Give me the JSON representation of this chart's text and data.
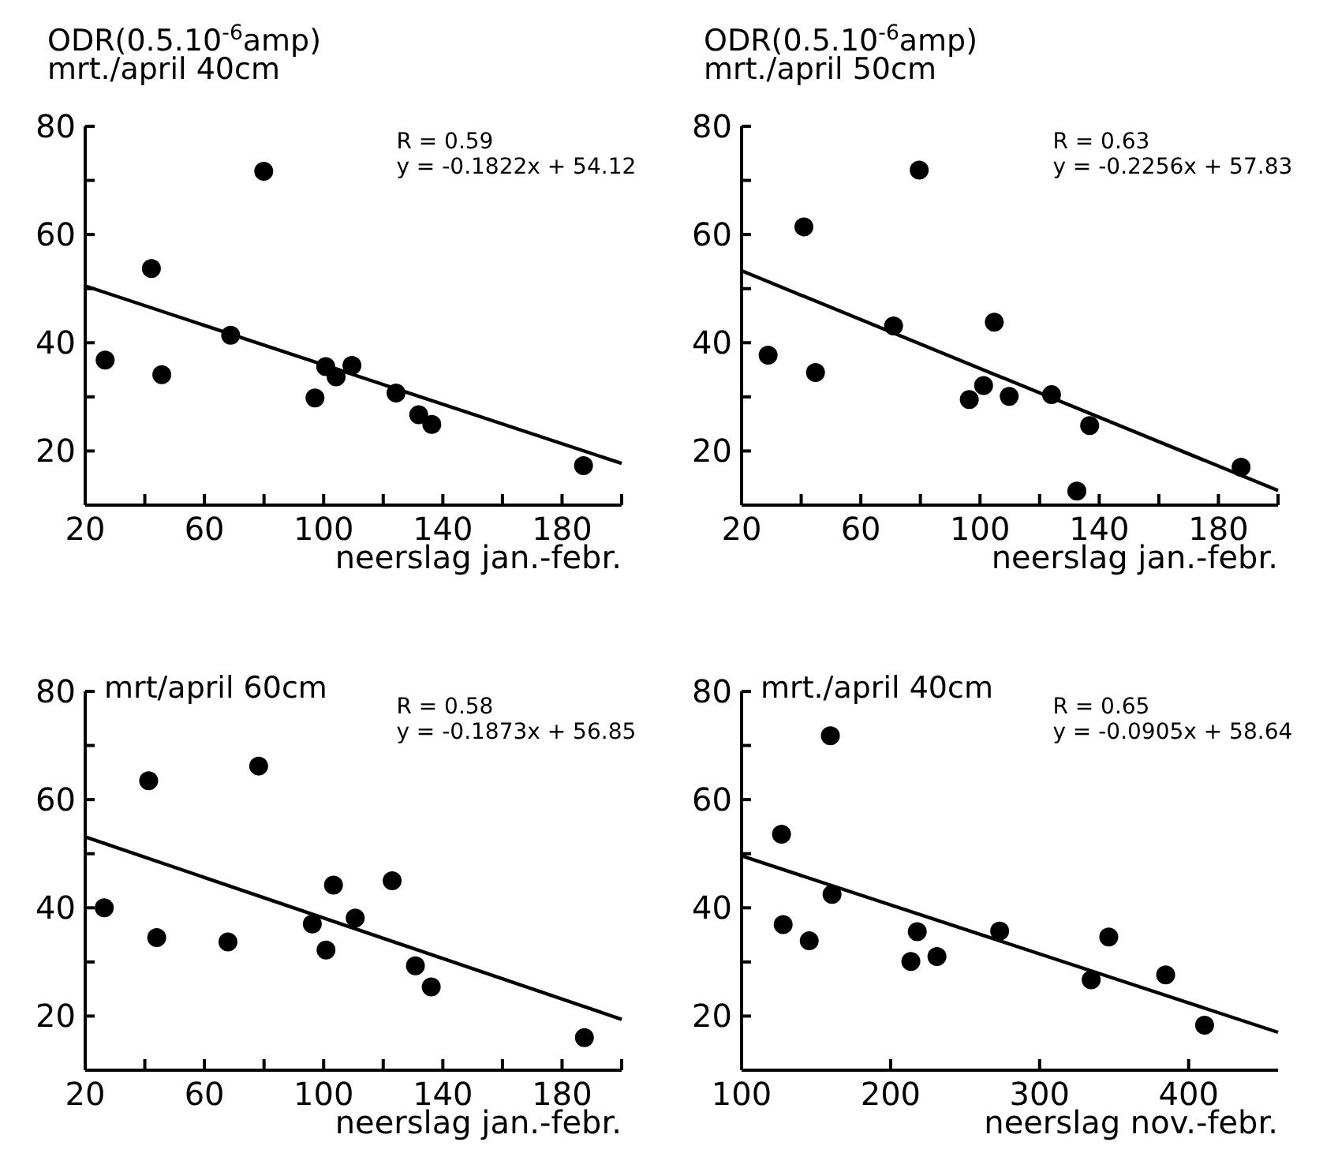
{
  "chart_data": [
    {
      "type": "scatter",
      "title": "ODR(0.5.10$^{-6}$amp)",
      "subtitle": "mrt./april 40cm",
      "xlabel": "neerslag jan.-febr.",
      "annotations": [
        "R = 0.59",
        "y = -0.1822x + 54.12"
      ],
      "xlim": [
        20,
        200
      ],
      "ylim": [
        10,
        80
      ],
      "xticks": [
        20,
        {
          "value": 40,
          "label": null
        },
        60,
        {
          "value": 80,
          "label": null
        },
        100,
        {
          "value": 120,
          "label": null
        },
        140,
        {
          "value": 160,
          "label": null
        },
        180,
        {
          "value": 200,
          "label": null
        }
      ],
      "yticks": [
        {
          "value": 10,
          "label": null
        },
        20,
        {
          "value": 30,
          "label": null
        },
        40,
        {
          "value": 50,
          "label": null
        },
        60,
        {
          "value": 70,
          "label": null
        },
        80
      ],
      "series": [
        {
          "marker": "circle",
          "color": "#000000",
          "x": [
            26.7,
            42.2,
            45.7,
            79.9,
            68.8,
            97.1,
            100.7,
            104.2,
            109.5,
            124.3,
            131.9,
            136.3,
            187.2
          ],
          "values": [
            36.8,
            53.7,
            34.1,
            71.7,
            41.4,
            29.8,
            35.6,
            33.7,
            35.8,
            30.7,
            26.7,
            24.9,
            17.3
          ]
        },
        {
          "type": "line",
          "marker": "none",
          "color": "#000000",
          "x": [
            20,
            200
          ],
          "values": [
            50.5,
            17.7
          ]
        }
      ]
    },
    {
      "type": "scatter",
      "title": "ODR(0.5.10$^{-6}$amp)",
      "subtitle": "mrt./april 50cm",
      "xlabel": "neerslag jan.-febr.",
      "annotations": [
        "R = 0.63",
        "y = -0.2256x + 57.83"
      ],
      "xlim": [
        20,
        200
      ],
      "ylim": [
        10,
        80
      ],
      "xticks": [
        20,
        {
          "value": 40,
          "label": null
        },
        60,
        {
          "value": 80,
          "label": null
        },
        100,
        {
          "value": 120,
          "label": null
        },
        140,
        {
          "value": 160,
          "label": null
        },
        180,
        {
          "value": 200,
          "label": null
        }
      ],
      "yticks": [
        {
          "value": 10,
          "label": null
        },
        20,
        {
          "value": 30,
          "label": null
        },
        40,
        {
          "value": 50,
          "label": null
        },
        60,
        {
          "value": 70,
          "label": null
        },
        80
      ],
      "series": [
        {
          "marker": "circle",
          "color": "#000000",
          "x": [
            28.9,
            40.9,
            44.8,
            79.6,
            71.0,
            96.4,
            101.2,
            104.8,
            109.8,
            124.0,
            132.5,
            136.8,
            187.6
          ],
          "values": [
            37.7,
            61.4,
            34.5,
            71.9,
            43.1,
            29.5,
            32.1,
            43.8,
            30.1,
            30.4,
            12.6,
            24.7,
            17.0
          ]
        },
        {
          "type": "line",
          "marker": "none",
          "color": "#000000",
          "x": [
            20,
            200
          ],
          "values": [
            53.3,
            12.7
          ]
        }
      ]
    },
    {
      "type": "scatter",
      "title": "mrt/april 60cm",
      "xlabel": "neerslag jan.-febr.",
      "annotations": [
        "R = 0.58",
        "y = -0.1873x + 56.85"
      ],
      "xlim": [
        20,
        200
      ],
      "ylim": [
        10,
        80
      ],
      "xticks": [
        20,
        {
          "value": 40,
          "label": null
        },
        60,
        {
          "value": 80,
          "label": null
        },
        100,
        {
          "value": 120,
          "label": null
        },
        140,
        {
          "value": 160,
          "label": null
        },
        180,
        {
          "value": 200,
          "label": null
        }
      ],
      "yticks": [
        {
          "value": 10,
          "label": null
        },
        20,
        {
          "value": 30,
          "label": null
        },
        40,
        {
          "value": 50,
          "label": null
        },
        60,
        {
          "value": 70,
          "label": null
        },
        80
      ],
      "series": [
        {
          "marker": "circle",
          "color": "#000000",
          "x": [
            26.4,
            41.3,
            44.0,
            78.2,
            67.9,
            96.2,
            100.8,
            103.3,
            110.6,
            123.0,
            130.8,
            136.1,
            187.5
          ],
          "values": [
            40.0,
            63.5,
            34.5,
            66.2,
            33.7,
            37.0,
            32.2,
            44.2,
            38.1,
            45.0,
            29.3,
            25.4,
            16.0
          ]
        },
        {
          "type": "line",
          "marker": "none",
          "color": "#000000",
          "x": [
            20,
            200
          ],
          "values": [
            53.1,
            19.4
          ]
        }
      ]
    },
    {
      "type": "scatter",
      "title": "mrt./april 40cm",
      "xlabel": "neerslag nov.-febr.",
      "annotations": [
        "R = 0.65",
        "y = -0.0905x + 58.64"
      ],
      "xlim": [
        100,
        460
      ],
      "ylim": [
        10,
        80
      ],
      "xticks": [
        100,
        200,
        300,
        400
      ],
      "yticks": [
        {
          "value": 10,
          "label": null
        },
        20,
        {
          "value": 30,
          "label": null
        },
        40,
        {
          "value": 50,
          "label": null
        },
        60,
        {
          "value": 70,
          "label": null
        },
        80
      ],
      "series": [
        {
          "marker": "circle",
          "color": "#000000",
          "x": [
            126.8,
            127.9,
            145.4,
            159.6,
            160.7,
            213.6,
            217.9,
            231.1,
            273.2,
            334.6,
            346.4,
            384.6,
            410.7
          ],
          "values": [
            53.6,
            36.9,
            33.9,
            71.8,
            42.5,
            30.1,
            35.6,
            31.0,
            35.7,
            26.7,
            34.6,
            27.6,
            18.3
          ]
        },
        {
          "type": "line",
          "marker": "none",
          "color": "#000000",
          "x": [
            100,
            460
          ],
          "values": [
            49.6,
            17.0
          ]
        }
      ]
    }
  ]
}
